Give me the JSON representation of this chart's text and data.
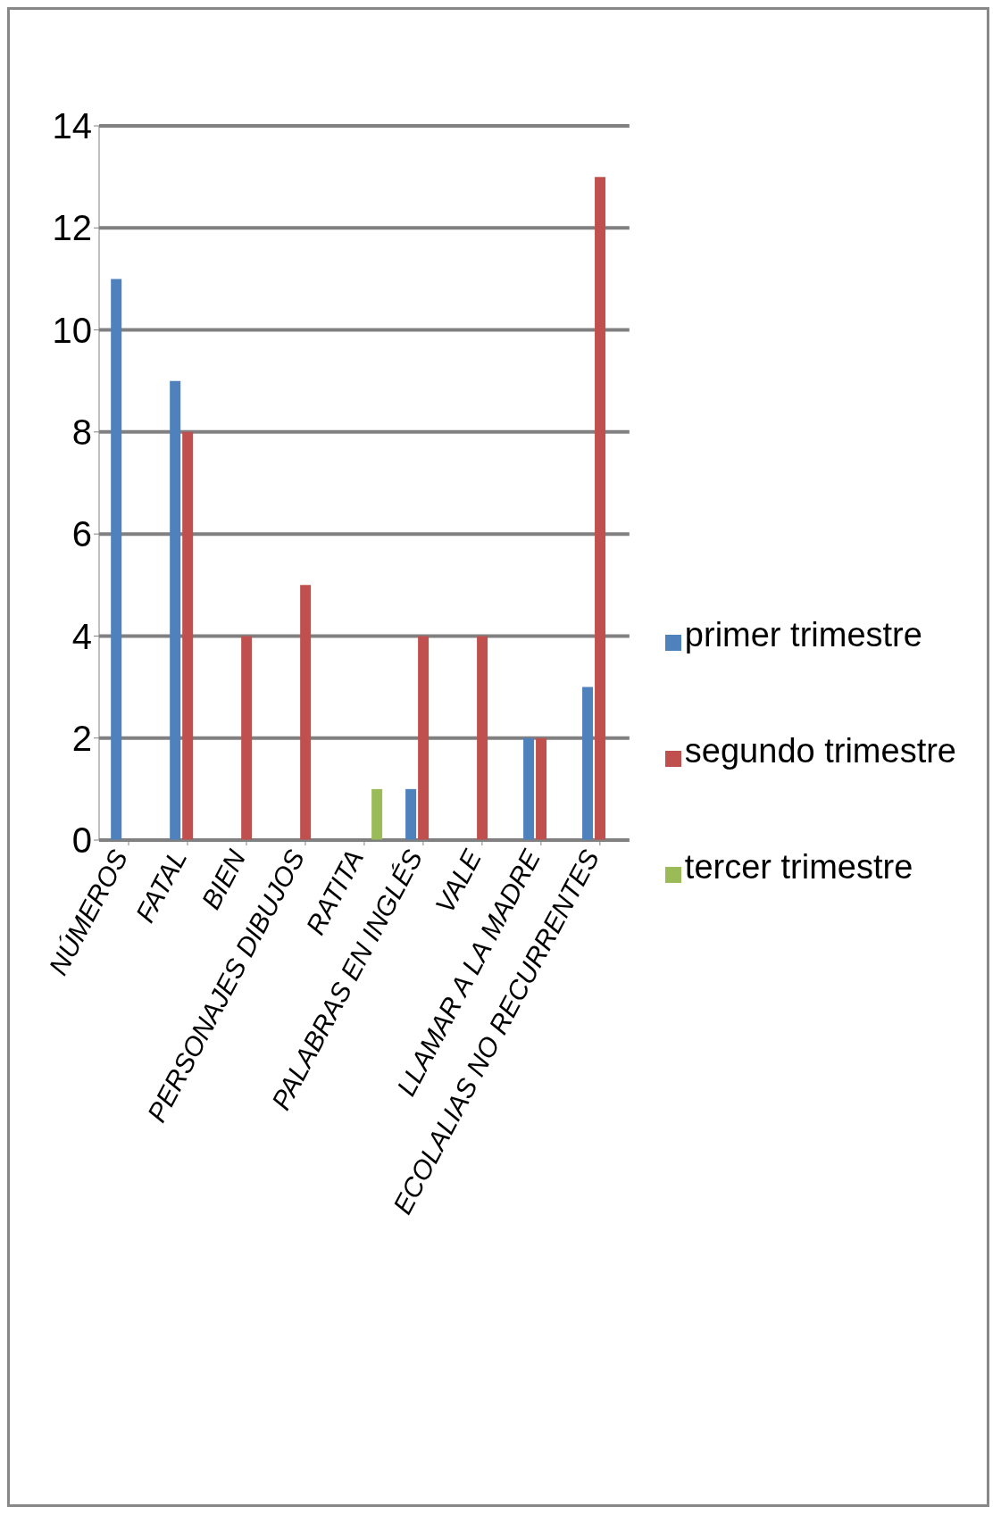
{
  "chart_data": {
    "type": "bar",
    "categories": [
      "NÚMEROS",
      "FATAL",
      "BIEN",
      "PERSONAJES DIBUJOS",
      "RATITA",
      "PALABRAS EN INGLÉS",
      "VALE",
      "LLAMAR A LA MADRE",
      "ECOLALIAS NO RECURRENTES"
    ],
    "series": [
      {
        "name": "primer trimestre",
        "color": "#4f81bd",
        "values": [
          11,
          9,
          0,
          0,
          0,
          1,
          0,
          2,
          3
        ]
      },
      {
        "name": "segundo trimestre",
        "color": "#c0504d",
        "values": [
          0,
          8,
          4,
          5,
          0,
          4,
          4,
          2,
          13
        ]
      },
      {
        "name": "tercer trimestre",
        "color": "#9bbb59",
        "values": [
          0,
          0,
          0,
          0,
          1,
          0,
          0,
          0,
          0
        ]
      }
    ],
    "ylim": [
      0,
      14
    ],
    "yticks": [
      0,
      2,
      4,
      6,
      8,
      10,
      12,
      14
    ],
    "grid": "y",
    "legend": "right"
  }
}
